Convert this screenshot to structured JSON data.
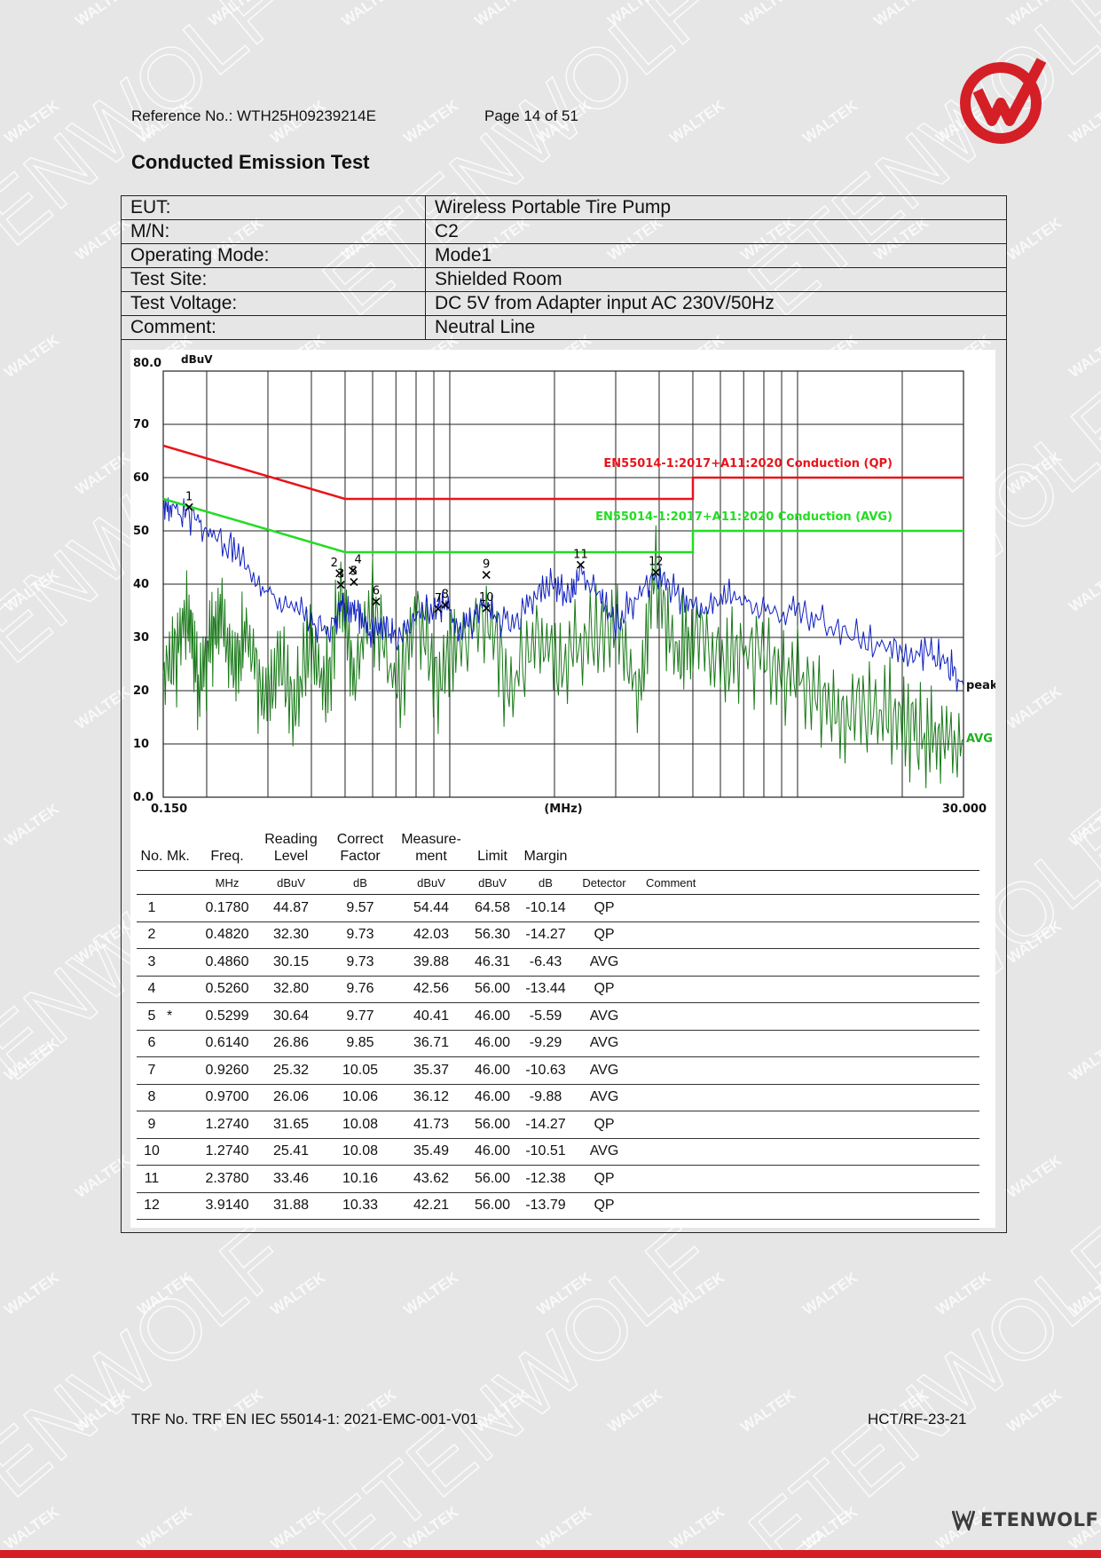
{
  "header": {
    "reference": "Reference No.: WTH25H09239214E",
    "page": "Page 14 of 51"
  },
  "title": "Conducted Emission Test",
  "info_rows": [
    {
      "label": "EUT:",
      "value": "Wireless Portable Tire Pump"
    },
    {
      "label": "M/N:",
      "value": "C2"
    },
    {
      "label": "Operating Mode:",
      "value": "Mode1"
    },
    {
      "label": "Test Site:",
      "value": "Shielded Room"
    },
    {
      "label": "Test Voltage:",
      "value": "DC 5V from Adapter input AC 230V/50Hz"
    },
    {
      "label": "Comment:",
      "value": "Neutral Line"
    }
  ],
  "chart_data": {
    "type": "line",
    "x_scale": "log",
    "xlim": [
      0.15,
      30
    ],
    "ylim": [
      0,
      80
    ],
    "y_unit": "dBuV",
    "x_unit": "(MHz)",
    "x_tick_labels": [
      "0.150",
      "30.000"
    ],
    "y_tick_labels": [
      "80.0",
      "70",
      "60",
      "50",
      "40",
      "30",
      "20",
      "10",
      "0.0"
    ],
    "grid": true,
    "limit_lines": [
      {
        "name": "EN55014-1:2017+A11:2020 Conduction (QP)",
        "color": "#e8141b",
        "x": [
          0.15,
          0.5,
          5,
          5,
          30
        ],
        "y": [
          66,
          56,
          56,
          60,
          60
        ]
      },
      {
        "name": "EN55014-1:2017+A11:2020 Conduction (AVG)",
        "color": "#22dd22",
        "x": [
          0.15,
          0.5,
          5,
          5,
          30
        ],
        "y": [
          56,
          46,
          46,
          50,
          50
        ]
      }
    ],
    "traces": [
      {
        "name": "peak",
        "color": "#1020c0",
        "x": [
          0.15,
          0.16,
          0.178,
          0.2,
          0.23,
          0.26,
          0.3,
          0.35,
          0.4,
          0.45,
          0.48,
          0.5,
          0.53,
          0.56,
          0.6,
          0.65,
          0.7,
          0.8,
          0.9,
          0.97,
          1.05,
          1.15,
          1.27,
          1.4,
          1.6,
          1.8,
          2.0,
          2.2,
          2.38,
          2.7,
          3.0,
          3.4,
          3.9,
          4.4,
          5.0,
          5.7,
          6.5,
          7.5,
          9.0,
          10.5,
          12.5,
          15,
          18,
          21,
          24,
          27,
          30
        ],
        "y": [
          55,
          54,
          53,
          50,
          47,
          44,
          39,
          35,
          33,
          31,
          36,
          35,
          36,
          33,
          31,
          32,
          30,
          33,
          35,
          36,
          31,
          33,
          37,
          33,
          34,
          39,
          40,
          37,
          42,
          38,
          33,
          37,
          42,
          38,
          36,
          36,
          39,
          36,
          35,
          34,
          32,
          30,
          28,
          27,
          27,
          25,
          21
        ]
      },
      {
        "name": "AVG",
        "color": "#1a7a1a",
        "x": [
          0.15,
          0.165,
          0.178,
          0.19,
          0.205,
          0.22,
          0.24,
          0.26,
          0.29,
          0.32,
          0.36,
          0.4,
          0.44,
          0.486,
          0.53,
          0.6,
          0.7,
          0.8,
          0.926,
          1.05,
          1.274,
          1.5,
          1.8,
          2.1,
          2.5,
          3.0,
          3.5,
          3.914,
          4.5,
          5.0,
          6.0,
          7.0,
          8.5,
          10,
          12,
          14,
          17,
          20,
          23,
          26,
          30
        ],
        "y": [
          23,
          29,
          35,
          20,
          31,
          35,
          22,
          32,
          19,
          25,
          17,
          30,
          19,
          39,
          22,
          37,
          19,
          35,
          22,
          30,
          35,
          20,
          31,
          24,
          30,
          33,
          20,
          42,
          26,
          30,
          26,
          27,
          25,
          22,
          18,
          17,
          16,
          15,
          11,
          12,
          11
        ]
      }
    ],
    "markers": [
      {
        "label": "1",
        "x": 0.178,
        "y": 54.44
      },
      {
        "label": "2",
        "x": 0.482,
        "y": 42.03
      },
      {
        "label": "3",
        "x": 0.486,
        "y": 39.88
      },
      {
        "label": "4",
        "x": 0.526,
        "y": 42.56
      },
      {
        "label": "5",
        "x": 0.5299,
        "y": 40.41
      },
      {
        "label": "6",
        "x": 0.614,
        "y": 36.71
      },
      {
        "label": "7",
        "x": 0.926,
        "y": 35.37
      },
      {
        "label": "8",
        "x": 0.97,
        "y": 36.12
      },
      {
        "label": "9",
        "x": 1.274,
        "y": 41.73
      },
      {
        "label": "10",
        "x": 1.274,
        "y": 35.49
      },
      {
        "label": "11",
        "x": 2.378,
        "y": 43.62
      },
      {
        "label": "12",
        "x": 3.914,
        "y": 42.21
      }
    ],
    "trace_labels": [
      "peak",
      "AVG"
    ]
  },
  "results": {
    "headers": [
      "No.",
      "Mk.",
      "Freq.",
      "Reading Level",
      "Correct Factor",
      "Measure- ment",
      "Limit",
      "Margin",
      "",
      ""
    ],
    "units": [
      "",
      "",
      "MHz",
      "dBuV",
      "dB",
      "dBuV",
      "dBuV",
      "dB",
      "Detector",
      "Comment"
    ],
    "rows": [
      [
        "1",
        "",
        "0.1780",
        "44.87",
        "9.57",
        "54.44",
        "64.58",
        "-10.14",
        "QP",
        ""
      ],
      [
        "2",
        "",
        "0.4820",
        "32.30",
        "9.73",
        "42.03",
        "56.30",
        "-14.27",
        "QP",
        ""
      ],
      [
        "3",
        "",
        "0.4860",
        "30.15",
        "9.73",
        "39.88",
        "46.31",
        "-6.43",
        "AVG",
        ""
      ],
      [
        "4",
        "",
        "0.5260",
        "32.80",
        "9.76",
        "42.56",
        "56.00",
        "-13.44",
        "QP",
        ""
      ],
      [
        "5",
        "*",
        "0.5299",
        "30.64",
        "9.77",
        "40.41",
        "46.00",
        "-5.59",
        "AVG",
        ""
      ],
      [
        "6",
        "",
        "0.6140",
        "26.86",
        "9.85",
        "36.71",
        "46.00",
        "-9.29",
        "AVG",
        ""
      ],
      [
        "7",
        "",
        "0.9260",
        "25.32",
        "10.05",
        "35.37",
        "46.00",
        "-10.63",
        "AVG",
        ""
      ],
      [
        "8",
        "",
        "0.9700",
        "26.06",
        "10.06",
        "36.12",
        "46.00",
        "-9.88",
        "AVG",
        ""
      ],
      [
        "9",
        "",
        "1.2740",
        "31.65",
        "10.08",
        "41.73",
        "56.00",
        "-14.27",
        "QP",
        ""
      ],
      [
        "10",
        "",
        "1.2740",
        "25.41",
        "10.08",
        "35.49",
        "46.00",
        "-10.51",
        "AVG",
        ""
      ],
      [
        "11",
        "",
        "2.3780",
        "33.46",
        "10.16",
        "43.62",
        "56.00",
        "-12.38",
        "QP",
        ""
      ],
      [
        "12",
        "",
        "3.9140",
        "31.88",
        "10.33",
        "42.21",
        "56.00",
        "-13.79",
        "QP",
        ""
      ]
    ]
  },
  "footer": {
    "trf": "TRF No. TRF EN IEC 55014-1: 2021-EMC-001-V01",
    "code": "HCT/RF-23-21"
  },
  "brand": "ETENWOLF",
  "watermarks": [
    "WALTEK",
    "ETENWOLF"
  ],
  "colors": {
    "accent": "#d41f26",
    "qp_limit": "#e8141b",
    "avg_limit": "#22dd22",
    "peak": "#1020c0",
    "avg": "#1a7a1a"
  }
}
